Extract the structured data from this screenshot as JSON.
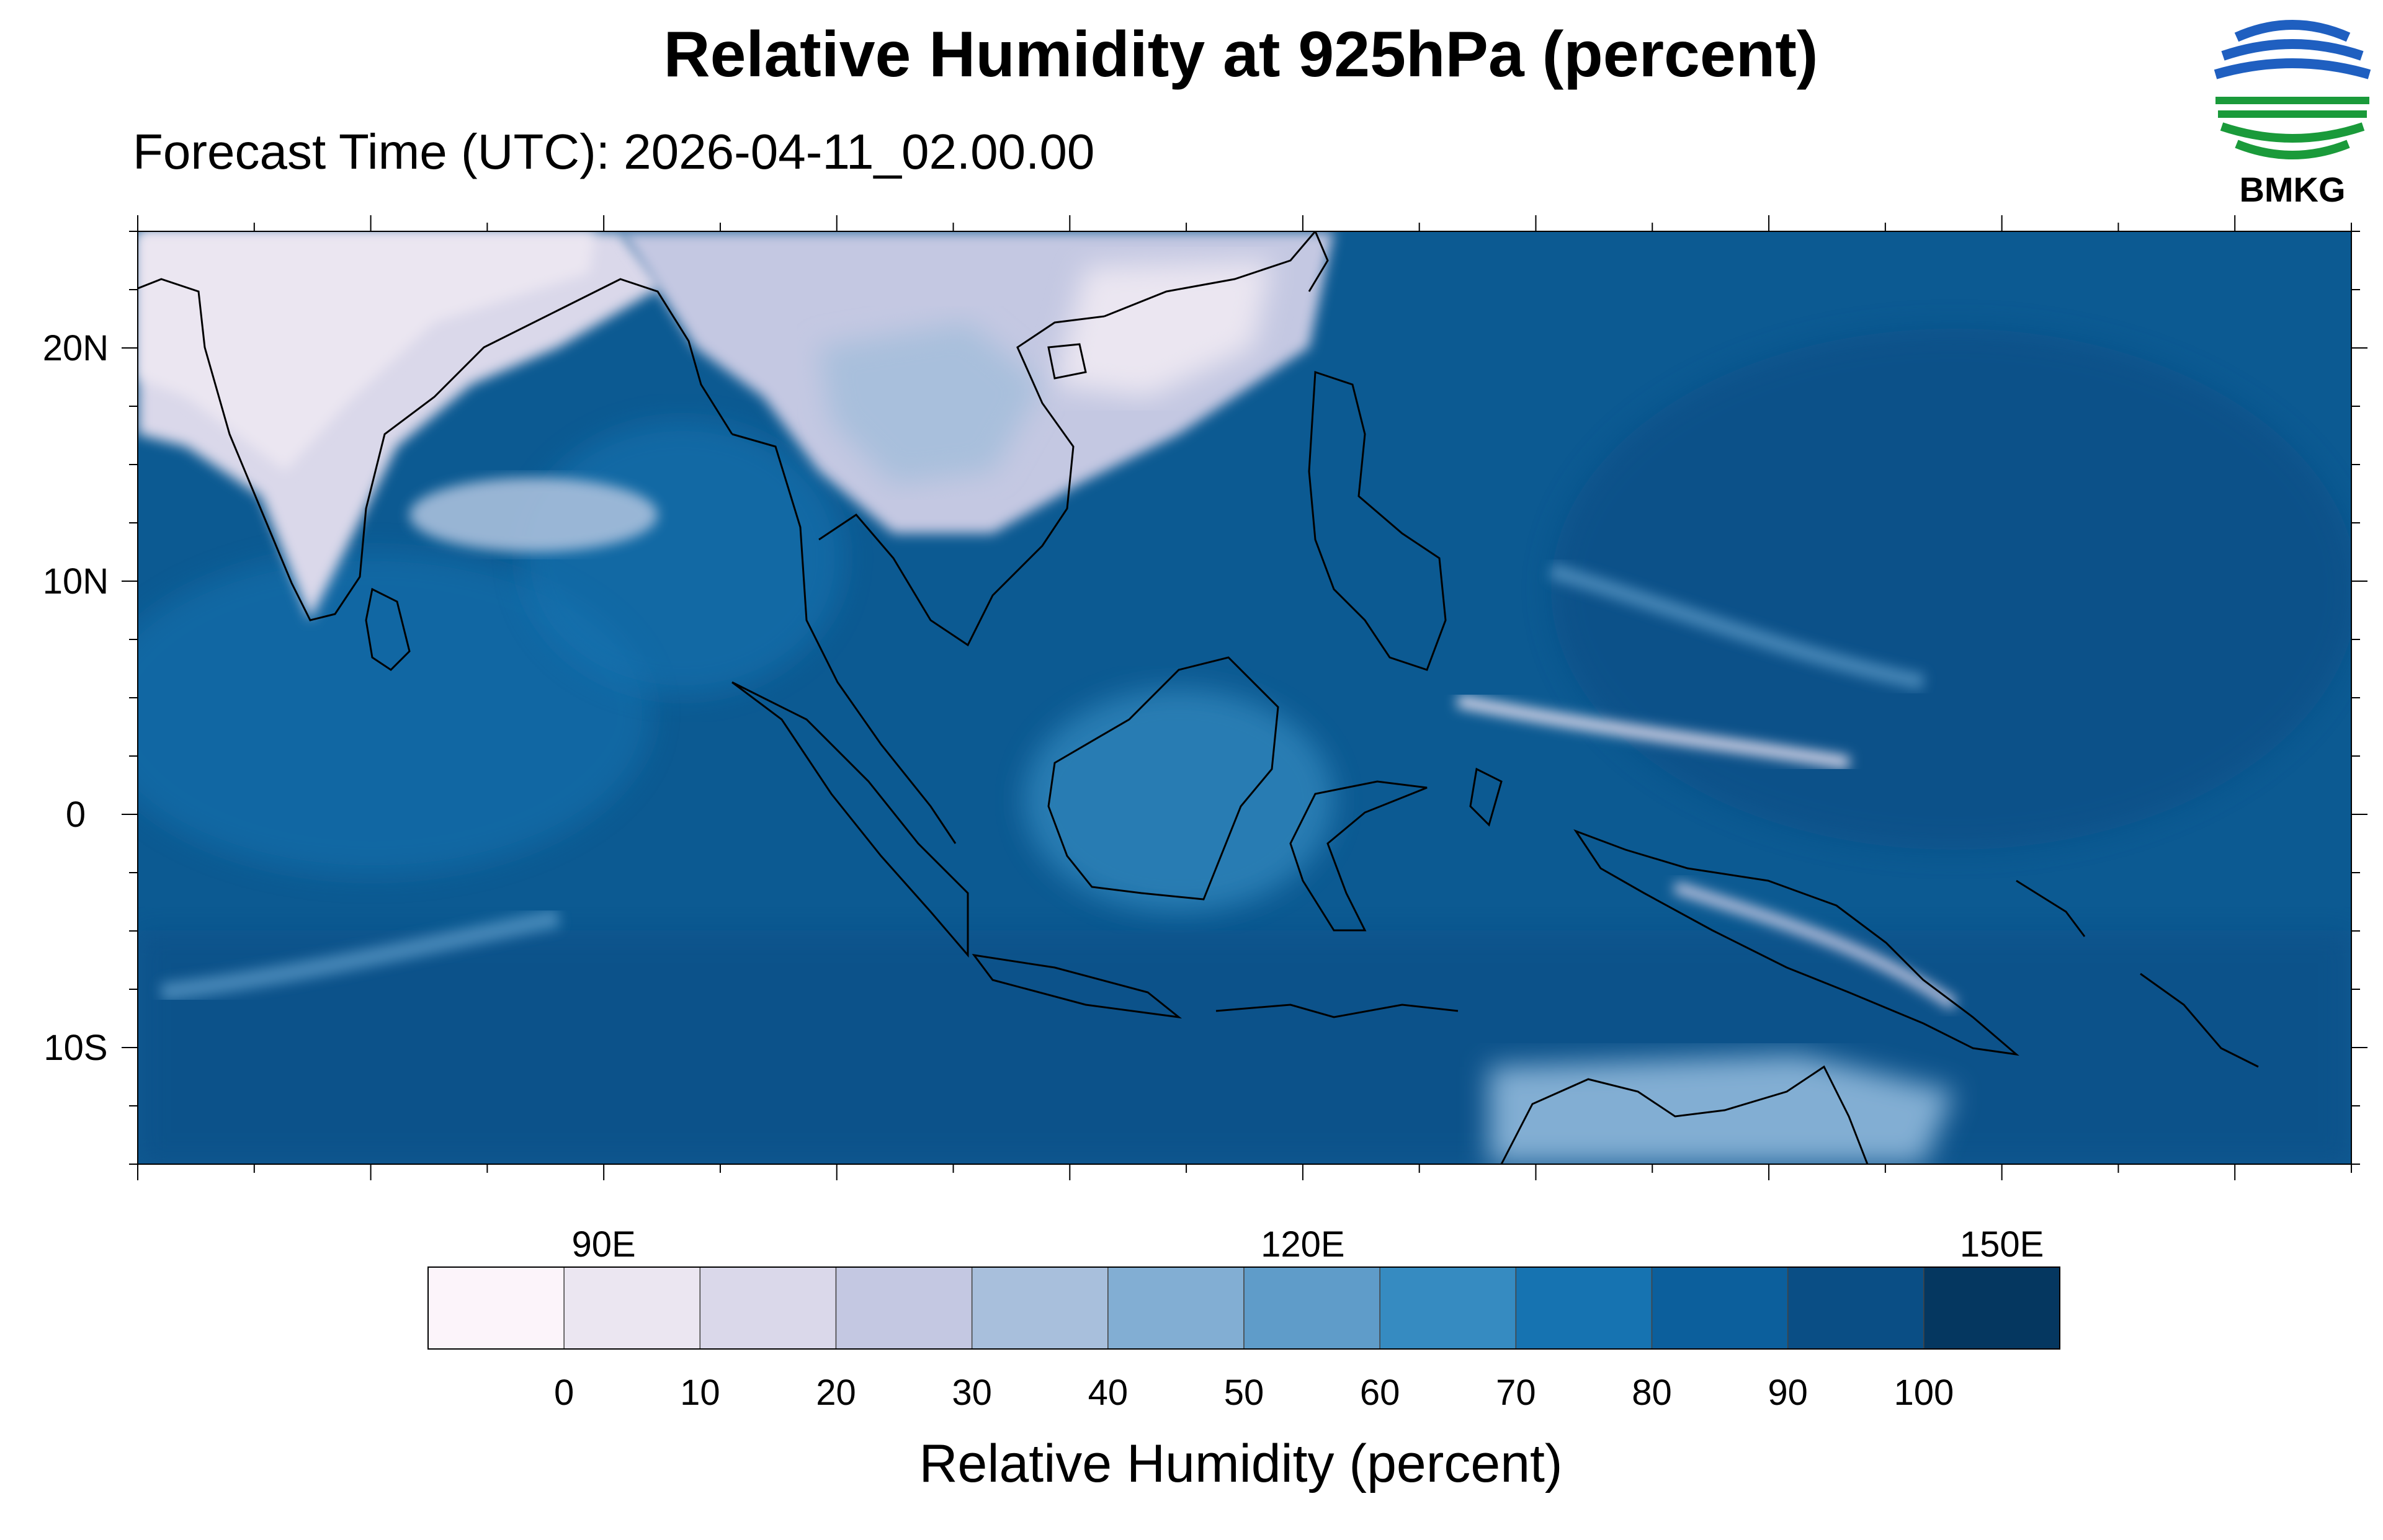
{
  "title": "Relative Humidity at 925hPa (percent)",
  "subtitle": "Forecast Time (UTC): 2026-04-11_02.00.00",
  "logo": {
    "text": "BMKG",
    "colors": {
      "blue": "#1f5fc0",
      "green": "#1a9a3a"
    }
  },
  "map": {
    "lon_range": [
      70,
      165
    ],
    "lat_range": [
      -15,
      25
    ],
    "lat_ticks": [
      {
        "value": 20,
        "label": "20N"
      },
      {
        "value": 10,
        "label": "10N"
      },
      {
        "value": 0,
        "label": "0"
      },
      {
        "value": -10,
        "label": "10S"
      }
    ],
    "lon_ticks": [
      {
        "value": 90,
        "label": "90E"
      },
      {
        "value": 120,
        "label": "120E"
      },
      {
        "value": 150,
        "label": "150E"
      }
    ],
    "ocean_color": "#0c5a92",
    "coastline_color": "#000000"
  },
  "colorbar": {
    "title": "Relative Humidity (percent)",
    "tick_labels": [
      "0",
      "10",
      "20",
      "30",
      "40",
      "50",
      "60",
      "70",
      "80",
      "90",
      "100"
    ],
    "colors": [
      "#fcf4fa",
      "#ebe6f1",
      "#dad8ea",
      "#c4c8e2",
      "#a8bfdc",
      "#82aed3",
      "#5f9cc9",
      "#368bc1",
      "#1673b1",
      "#0c5f9c",
      "#0a4e85",
      "#053760"
    ]
  }
}
